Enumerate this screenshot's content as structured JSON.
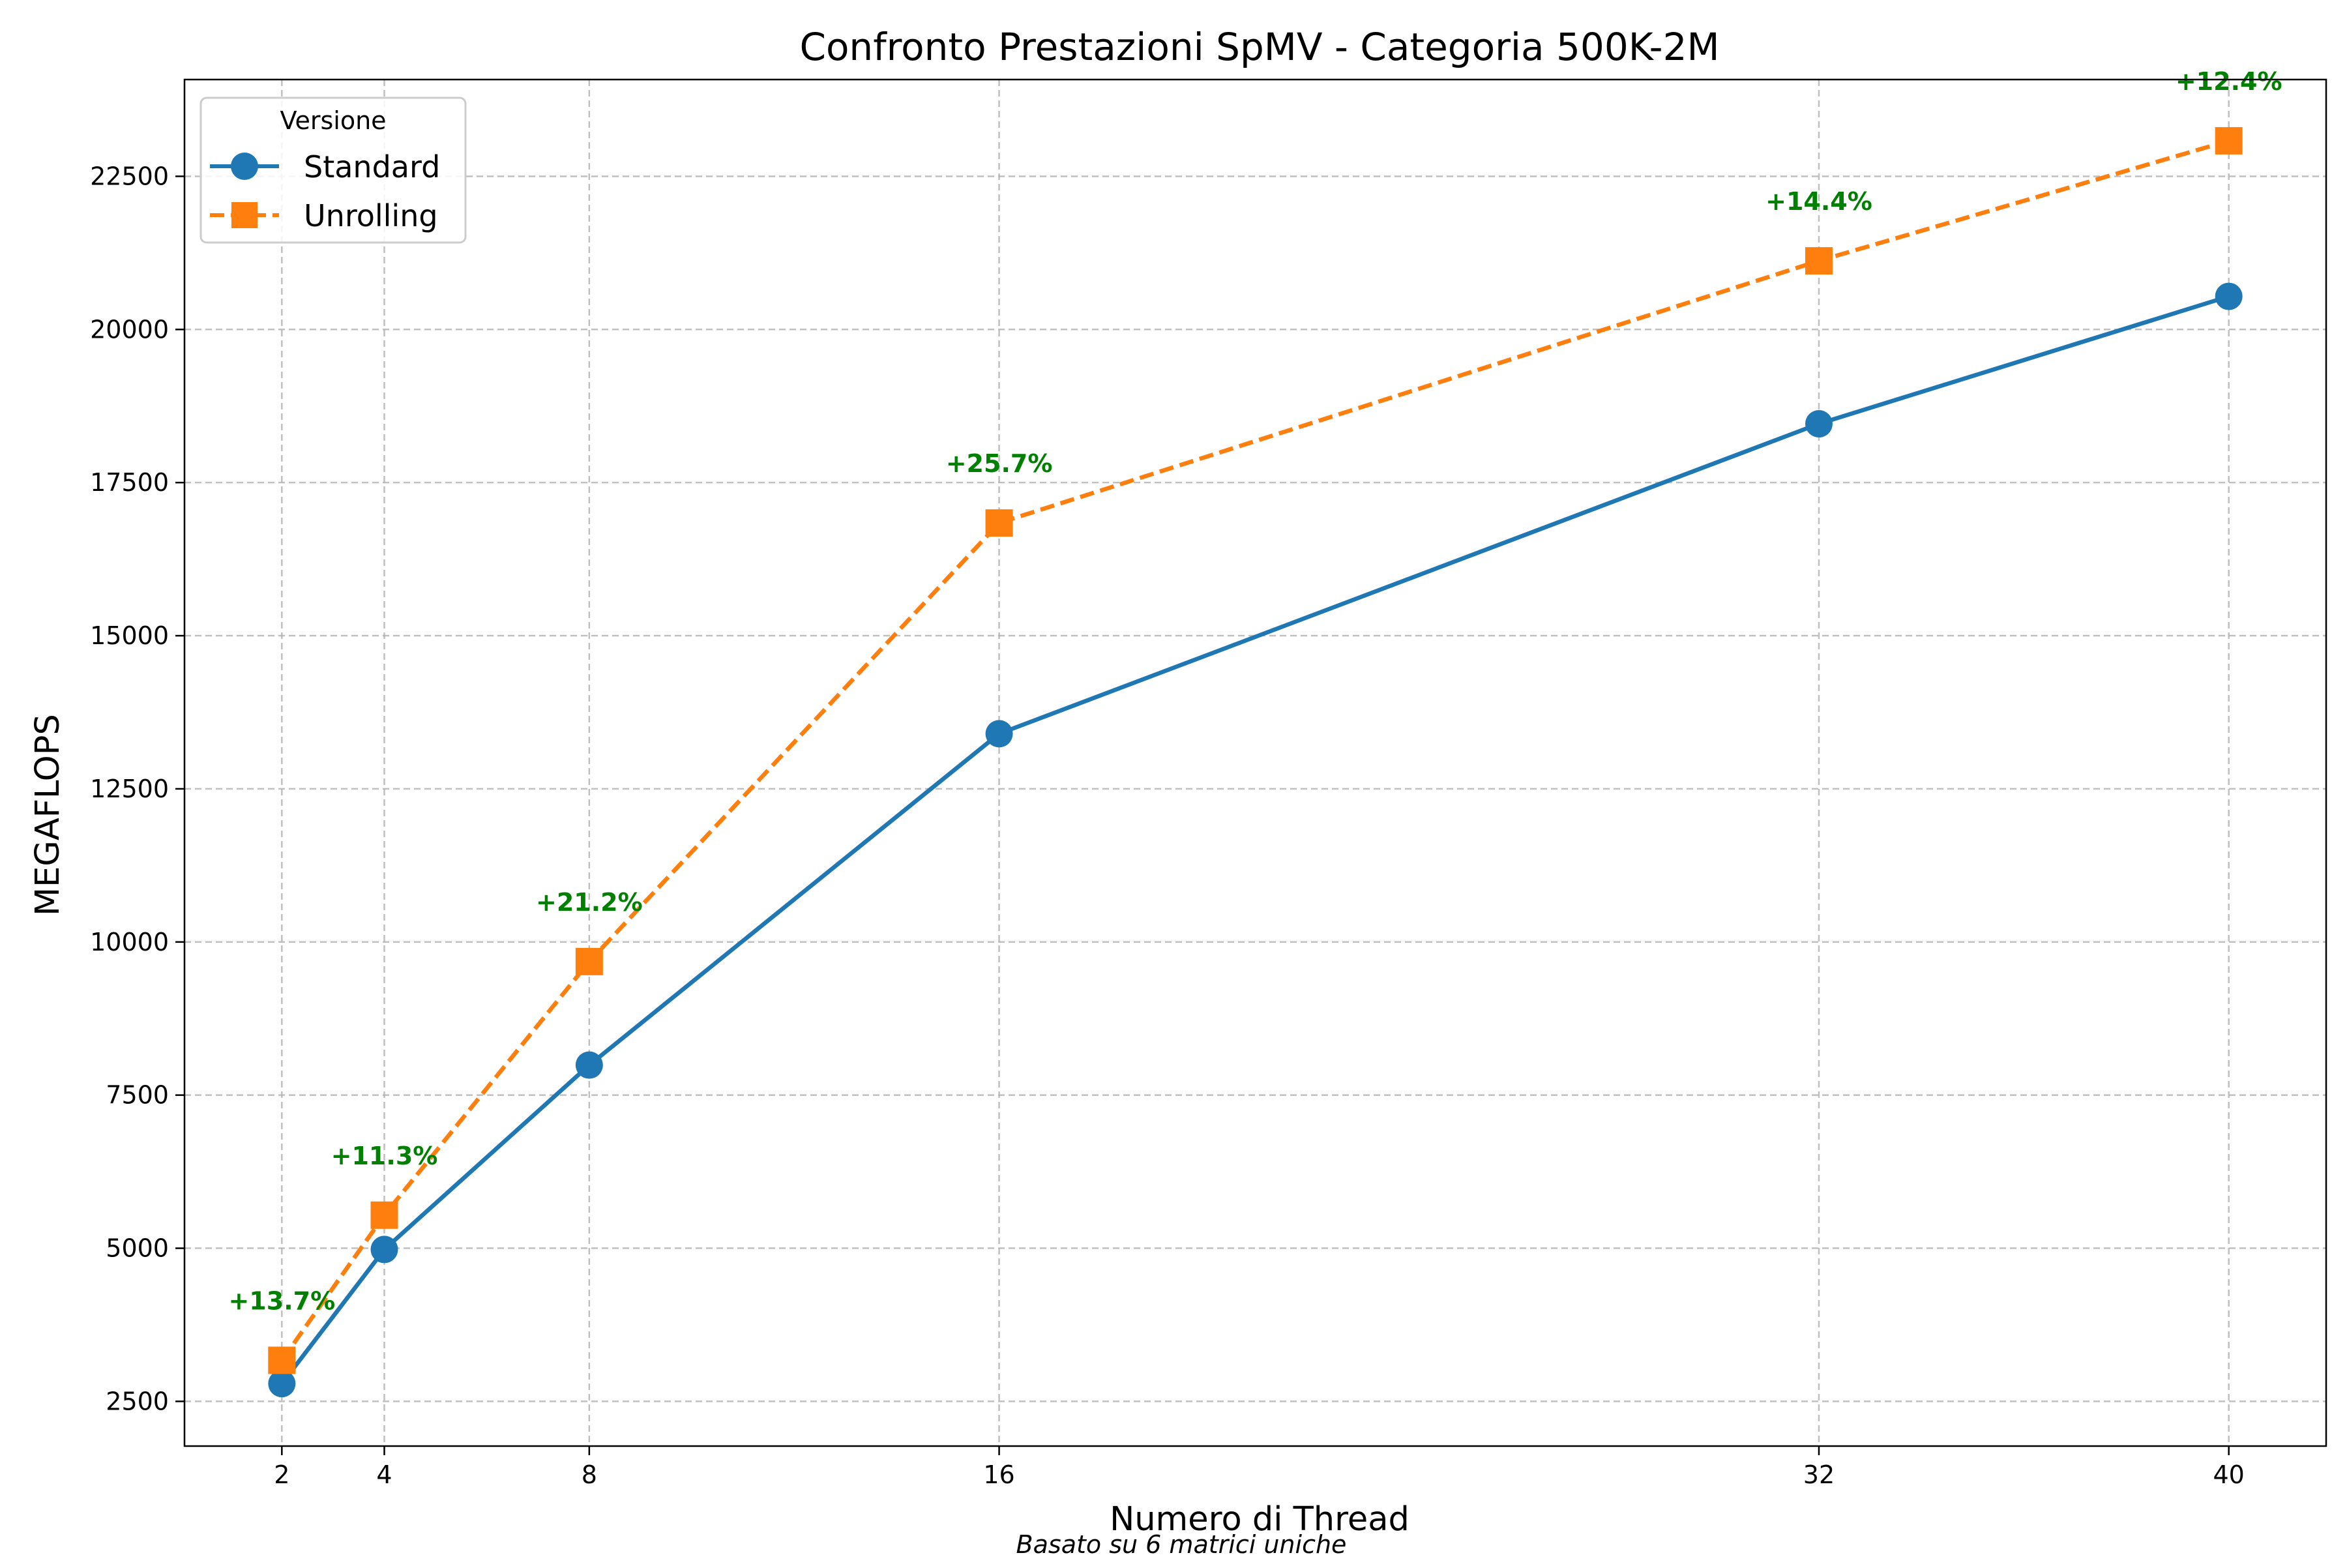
{
  "chart_data": {
    "type": "line",
    "title": "Confronto Prestazioni SpMV - Categoria 500K-2M",
    "xlabel": "Numero di Thread",
    "ylabel": "MEGAFLOPS",
    "footnote": "Basato su 6 matrici uniche",
    "x": [
      2,
      4,
      8,
      16,
      32,
      40
    ],
    "xticks": [
      "2",
      "4",
      "8",
      "16",
      "32",
      "40"
    ],
    "yticks": [
      "2500",
      "5000",
      "7500",
      "10000",
      "12500",
      "15000",
      "17500",
      "20000",
      "22500"
    ],
    "xlim": [
      0.1,
      41.9
    ],
    "ylim": [
      1770,
      24080
    ],
    "grid": true,
    "legend": {
      "title": "Versione",
      "position": "top-left"
    },
    "series": [
      {
        "name": "Standard",
        "color": "#1f77b4",
        "marker": "circle",
        "line_style": "solid",
        "values": [
          2790,
          4980,
          7990,
          13400,
          18460,
          20540
        ]
      },
      {
        "name": "Unrolling",
        "color": "#ff7f0e",
        "marker": "square",
        "line_style": "dashed",
        "values": [
          3170,
          5540,
          9680,
          16840,
          21120,
          23080
        ]
      }
    ],
    "annotations": {
      "color": "#008000",
      "labels": [
        "+13.7%",
        "+11.3%",
        "+21.2%",
        "+25.7%",
        "+14.4%",
        "+12.4%"
      ]
    }
  }
}
